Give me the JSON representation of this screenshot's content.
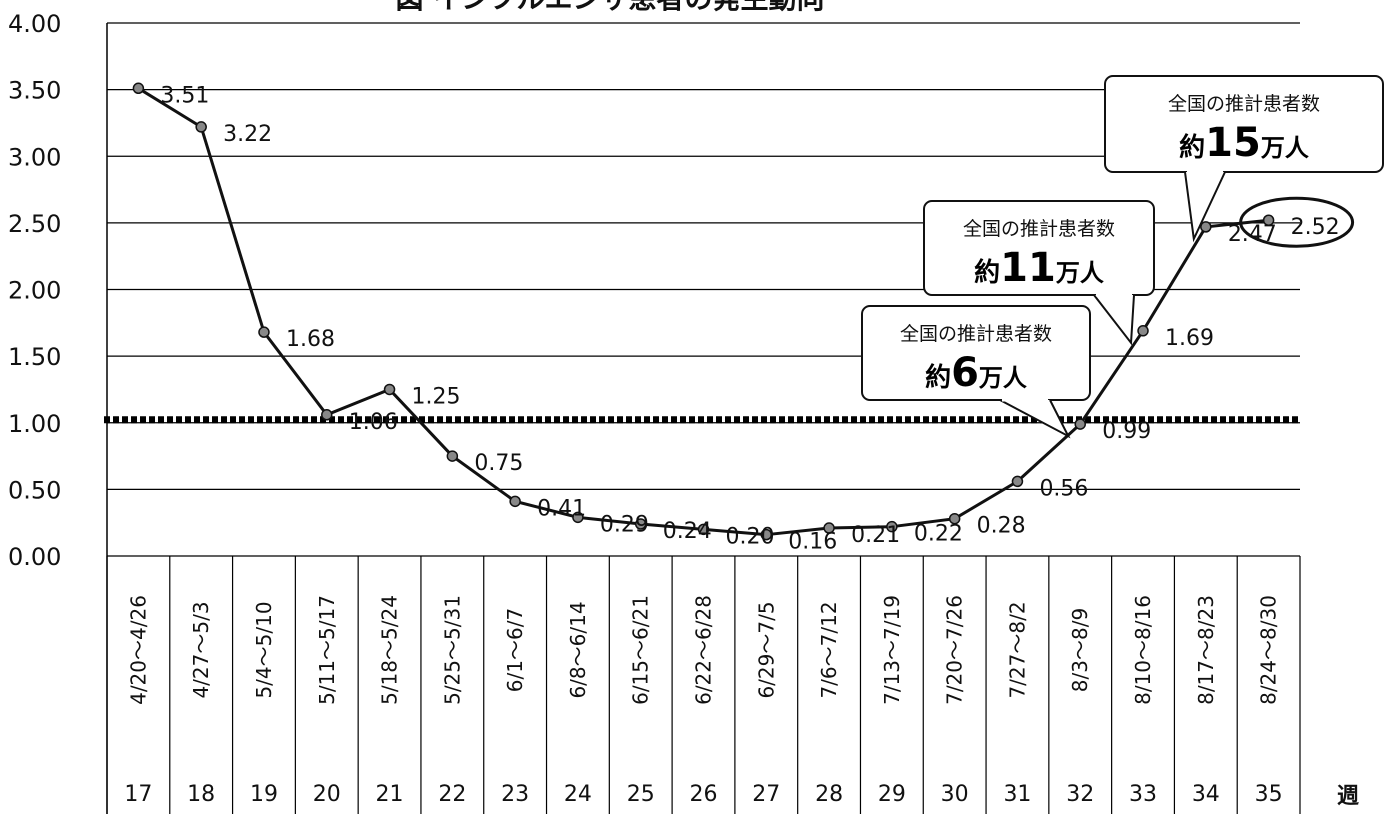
{
  "chart_data": {
    "type": "line",
    "title": "図 インフルエンザ患者の発生動向",
    "weeks": [
      "17",
      "18",
      "19",
      "20",
      "21",
      "22",
      "23",
      "24",
      "25",
      "26",
      "27",
      "28",
      "29",
      "30",
      "31",
      "32",
      "33",
      "34",
      "35"
    ],
    "date_ranges": [
      "4/20〜4/26",
      "4/27〜5/3",
      "5/4〜5/10",
      "5/11〜5/17",
      "5/18〜5/24",
      "5/25〜5/31",
      "6/1〜6/7",
      "6/8〜6/14",
      "6/15〜6/21",
      "6/22〜6/28",
      "6/29〜7/5",
      "7/6〜7/12",
      "7/13〜7/19",
      "7/20〜7/26",
      "7/27〜8/2",
      "8/3〜8/9",
      "8/10〜8/16",
      "8/17〜8/23",
      "8/24〜8/30"
    ],
    "values": [
      3.51,
      3.22,
      1.68,
      1.06,
      1.25,
      0.75,
      0.41,
      0.29,
      0.24,
      0.2,
      0.16,
      0.21,
      0.22,
      0.28,
      0.56,
      0.99,
      1.69,
      2.47,
      2.52
    ],
    "value_labels": [
      "3.51",
      "3.22",
      "1.68",
      "1.06",
      "1.25",
      "0.75",
      "0.41",
      "0.29",
      "0.24",
      "0.20",
      "0.16",
      "0.21",
      "0.22",
      "0.28",
      "0.56",
      "0.99",
      "1.69",
      "2.47",
      "2.52"
    ],
    "ylim": [
      0,
      4
    ],
    "yticks": [
      "0.00",
      "0.50",
      "1.00",
      "1.50",
      "2.00",
      "2.50",
      "3.00",
      "3.50",
      "4.00"
    ],
    "x_unit_label": "週",
    "threshold": 1.0,
    "grid": true,
    "annotations": [
      {
        "line1": "全国の推計患者数",
        "prefix": "約",
        "number": "6",
        "suffix": "万人",
        "week": "32"
      },
      {
        "line1": "全国の推計患者数",
        "prefix": "約",
        "number": "11",
        "suffix": "万人",
        "week": "33"
      },
      {
        "line1": "全国の推計患者数",
        "prefix": "約",
        "number": "15",
        "suffix": "万人",
        "week": "34"
      }
    ],
    "highlighted_point": "35",
    "colors": {
      "line": "#111111",
      "marker_fill": "#888888",
      "grid": "#000000",
      "threshold": "#000000"
    }
  }
}
